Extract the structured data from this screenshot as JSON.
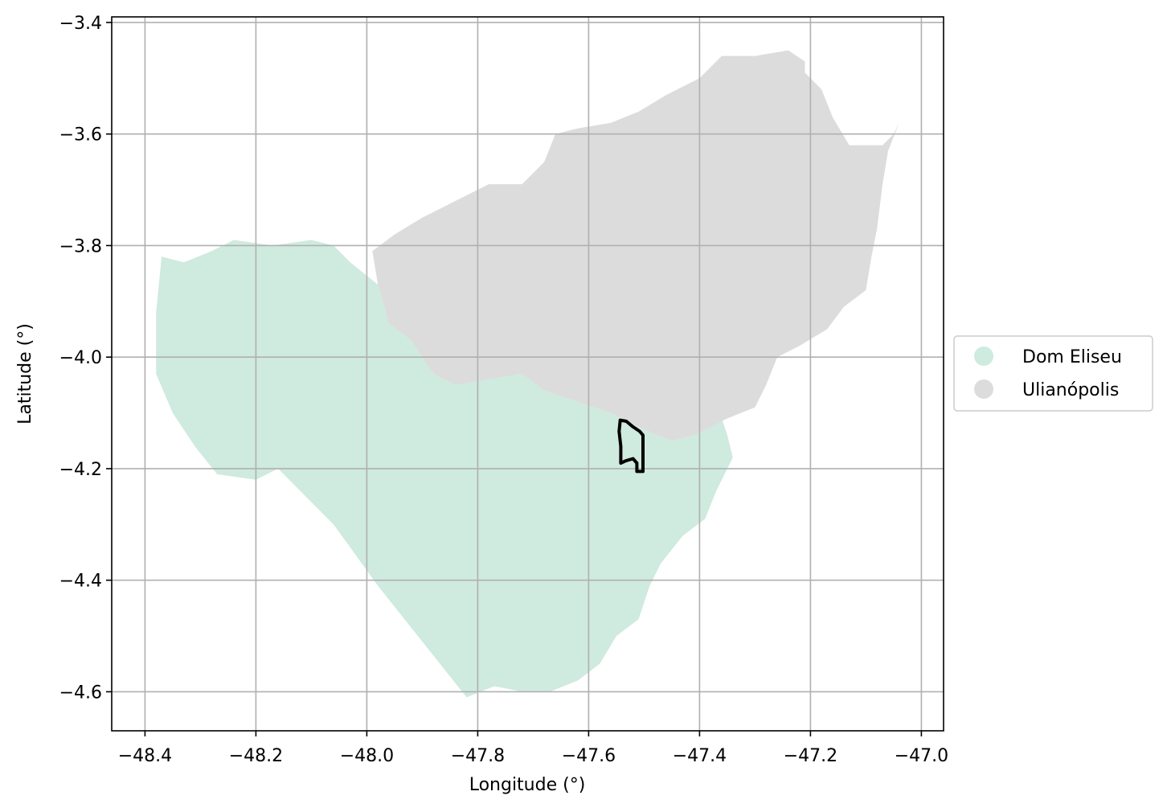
{
  "chart_data": {
    "type": "map",
    "title": "",
    "xlabel": "Longitude (°)",
    "ylabel": "Latitude (°)",
    "xlim": [
      -48.46,
      -46.96
    ],
    "ylim": [
      -4.67,
      -3.39
    ],
    "xticks": [
      -48.4,
      -48.2,
      -48.0,
      -47.8,
      -47.6,
      -47.4,
      -47.2,
      -47.0
    ],
    "xtick_labels": [
      "−48.4",
      "−48.2",
      "−48.0",
      "−47.8",
      "−47.6",
      "−47.4",
      "−47.2",
      "−47.0"
    ],
    "yticks": [
      -3.4,
      -3.6,
      -3.8,
      -4.0,
      -4.2,
      -4.4,
      -4.6
    ],
    "ytick_labels": [
      "−3.4",
      "−3.6",
      "−3.8",
      "−4.0",
      "−4.2",
      "−4.4",
      "−4.6"
    ],
    "grid": true,
    "legend_position": "right, outside plot",
    "regions": [
      {
        "name": "Dom Eliseu",
        "color": "#cfeadf",
        "boundary": [
          [
            -48.37,
            -3.82
          ],
          [
            -48.33,
            -3.83
          ],
          [
            -48.28,
            -3.81
          ],
          [
            -48.24,
            -3.79
          ],
          [
            -48.17,
            -3.8
          ],
          [
            -48.1,
            -3.79
          ],
          [
            -48.06,
            -3.8
          ],
          [
            -48.03,
            -3.83
          ],
          [
            -47.98,
            -3.87
          ],
          [
            -47.96,
            -3.94
          ],
          [
            -47.92,
            -3.97
          ],
          [
            -47.9,
            -4.0
          ],
          [
            -47.88,
            -4.03
          ],
          [
            -47.84,
            -4.05
          ],
          [
            -47.78,
            -4.04
          ],
          [
            -47.72,
            -4.03
          ],
          [
            -47.68,
            -4.06
          ],
          [
            -47.62,
            -4.08
          ],
          [
            -47.56,
            -4.1
          ],
          [
            -47.5,
            -4.13
          ],
          [
            -47.45,
            -4.15
          ],
          [
            -47.41,
            -4.14
          ],
          [
            -47.36,
            -4.11
          ],
          [
            -47.35,
            -4.14
          ],
          [
            -47.34,
            -4.18
          ],
          [
            -47.37,
            -4.24
          ],
          [
            -47.39,
            -4.29
          ],
          [
            -47.43,
            -4.32
          ],
          [
            -47.47,
            -4.37
          ],
          [
            -47.49,
            -4.41
          ],
          [
            -47.51,
            -4.47
          ],
          [
            -47.55,
            -4.5
          ],
          [
            -47.58,
            -4.55
          ],
          [
            -47.62,
            -4.58
          ],
          [
            -47.67,
            -4.6
          ],
          [
            -47.72,
            -4.6
          ],
          [
            -47.77,
            -4.59
          ],
          [
            -47.82,
            -4.61
          ],
          [
            -47.9,
            -4.51
          ],
          [
            -47.98,
            -4.41
          ],
          [
            -48.06,
            -4.3
          ],
          [
            -48.16,
            -4.2
          ],
          [
            -48.2,
            -4.22
          ],
          [
            -48.27,
            -4.21
          ],
          [
            -48.31,
            -4.16
          ],
          [
            -48.35,
            -4.1
          ],
          [
            -48.38,
            -4.03
          ],
          [
            -48.38,
            -3.92
          ],
          [
            -48.37,
            -3.82
          ]
        ]
      },
      {
        "name": "Ulianópolis",
        "color": "#dcdcdc",
        "boundary": [
          [
            -47.99,
            -3.81
          ],
          [
            -47.95,
            -3.78
          ],
          [
            -47.9,
            -3.75
          ],
          [
            -47.84,
            -3.72
          ],
          [
            -47.78,
            -3.69
          ],
          [
            -47.72,
            -3.69
          ],
          [
            -47.68,
            -3.65
          ],
          [
            -47.66,
            -3.6
          ],
          [
            -47.62,
            -3.59
          ],
          [
            -47.56,
            -3.58
          ],
          [
            -47.51,
            -3.56
          ],
          [
            -47.46,
            -3.53
          ],
          [
            -47.4,
            -3.5
          ],
          [
            -47.36,
            -3.46
          ],
          [
            -47.3,
            -3.46
          ],
          [
            -47.24,
            -3.45
          ],
          [
            -47.21,
            -3.47
          ],
          [
            -47.21,
            -3.49
          ],
          [
            -47.18,
            -3.52
          ],
          [
            -47.16,
            -3.57
          ],
          [
            -47.13,
            -3.62
          ],
          [
            -47.07,
            -3.62
          ],
          [
            -47.05,
            -3.6
          ],
          [
            -47.04,
            -3.58
          ],
          [
            -47.06,
            -3.63
          ],
          [
            -47.07,
            -3.69
          ],
          [
            -47.08,
            -3.77
          ],
          [
            -47.09,
            -3.82
          ],
          [
            -47.1,
            -3.88
          ],
          [
            -47.14,
            -3.91
          ],
          [
            -47.17,
            -3.95
          ],
          [
            -47.22,
            -3.98
          ],
          [
            -47.26,
            -4.0
          ],
          [
            -47.28,
            -4.05
          ],
          [
            -47.3,
            -4.09
          ],
          [
            -47.35,
            -4.11
          ],
          [
            -47.41,
            -4.14
          ],
          [
            -47.45,
            -4.15
          ],
          [
            -47.5,
            -4.13
          ],
          [
            -47.56,
            -4.1
          ],
          [
            -47.62,
            -4.08
          ],
          [
            -47.68,
            -4.06
          ],
          [
            -47.72,
            -4.03
          ],
          [
            -47.78,
            -4.04
          ],
          [
            -47.84,
            -4.05
          ],
          [
            -47.88,
            -4.03
          ],
          [
            -47.9,
            -4.0
          ],
          [
            -47.92,
            -3.97
          ],
          [
            -47.96,
            -3.94
          ],
          [
            -47.98,
            -3.87
          ],
          [
            -47.99,
            -3.81
          ]
        ]
      }
    ],
    "outline": {
      "color": "#000000",
      "boundary": [
        [
          -47.543,
          -4.113
        ],
        [
          -47.532,
          -4.115
        ],
        [
          -47.52,
          -4.125
        ],
        [
          -47.508,
          -4.133
        ],
        [
          -47.502,
          -4.14
        ],
        [
          -47.502,
          -4.205
        ],
        [
          -47.513,
          -4.205
        ],
        [
          -47.513,
          -4.19
        ],
        [
          -47.52,
          -4.182
        ],
        [
          -47.533,
          -4.186
        ],
        [
          -47.542,
          -4.19
        ],
        [
          -47.542,
          -4.16
        ],
        [
          -47.545,
          -4.133
        ],
        [
          -47.543,
          -4.113
        ]
      ]
    }
  }
}
